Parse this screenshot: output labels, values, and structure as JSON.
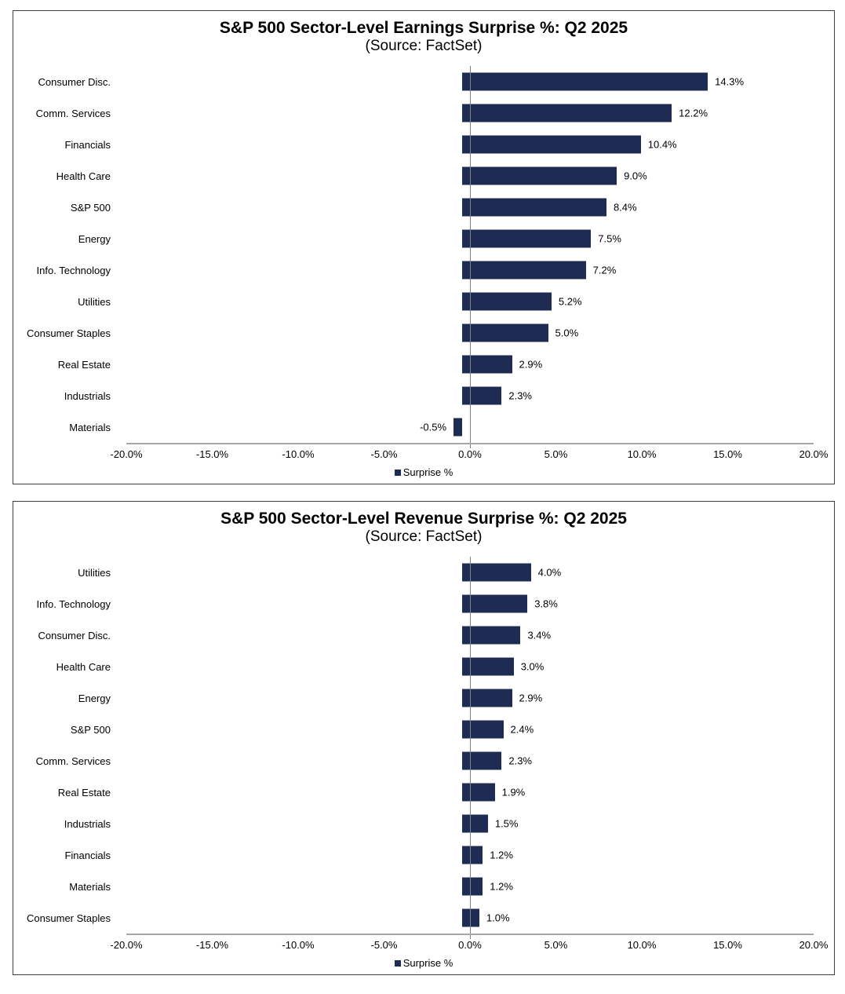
{
  "colors": {
    "bar": "#1e2b53",
    "axis_line": "#a6a6a6",
    "zero_line": "#808080",
    "panel_border": "#3f3f3f",
    "text": "#000000",
    "background": "#ffffff"
  },
  "chart_data": [
    {
      "type": "bar",
      "orientation": "horizontal",
      "title": "S&P 500 Sector-Level Earnings Surprise %: Q2 2025",
      "subtitle": "(Source: FactSet)",
      "legend": {
        "label": "Surprise %",
        "position": "bottom-center"
      },
      "xlabel": "",
      "ylabel": "",
      "xlim": [
        -20,
        20
      ],
      "x_tick_labels": [
        "-20.0%",
        "-15.0%",
        "-10.0%",
        "-5.0%",
        "0.0%",
        "5.0%",
        "10.0%",
        "15.0%",
        "20.0%"
      ],
      "grid": false,
      "bar_color": "#1e2b53",
      "categories": [
        "Consumer Disc.",
        "Comm. Services",
        "Financials",
        "Health Care",
        "S&P 500",
        "Energy",
        "Info. Technology",
        "Utilities",
        "Consumer Staples",
        "Real Estate",
        "Industrials",
        "Materials"
      ],
      "values": [
        14.3,
        12.2,
        10.4,
        9.0,
        8.4,
        7.5,
        7.2,
        5.2,
        5.0,
        2.9,
        2.3,
        -0.5
      ],
      "value_labels": [
        "14.3%",
        "12.2%",
        "10.4%",
        "9.0%",
        "8.4%",
        "7.5%",
        "7.2%",
        "5.2%",
        "5.0%",
        "2.9%",
        "2.3%",
        "-0.5%"
      ]
    },
    {
      "type": "bar",
      "orientation": "horizontal",
      "title": "S&P 500 Sector-Level Revenue Surprise %: Q2 2025",
      "subtitle": "(Source: FactSet)",
      "legend": {
        "label": "Surprise %",
        "position": "bottom-center"
      },
      "xlabel": "",
      "ylabel": "",
      "xlim": [
        -20,
        20
      ],
      "x_tick_labels": [
        "-20.0%",
        "-15.0%",
        "-10.0%",
        "-5.0%",
        "0.0%",
        "5.0%",
        "10.0%",
        "15.0%",
        "20.0%"
      ],
      "grid": false,
      "bar_color": "#1e2b53",
      "categories": [
        "Utilities",
        "Info. Technology",
        "Consumer Disc.",
        "Health Care",
        "Energy",
        "S&P 500",
        "Comm. Services",
        "Real Estate",
        "Industrials",
        "Financials",
        "Materials",
        "Consumer Staples"
      ],
      "values": [
        4.0,
        3.8,
        3.4,
        3.0,
        2.9,
        2.4,
        2.3,
        1.9,
        1.5,
        1.2,
        1.2,
        1.0
      ],
      "value_labels": [
        "4.0%",
        "3.8%",
        "3.4%",
        "3.0%",
        "2.9%",
        "2.4%",
        "2.3%",
        "1.9%",
        "1.5%",
        "1.2%",
        "1.2%",
        "1.0%"
      ]
    }
  ]
}
